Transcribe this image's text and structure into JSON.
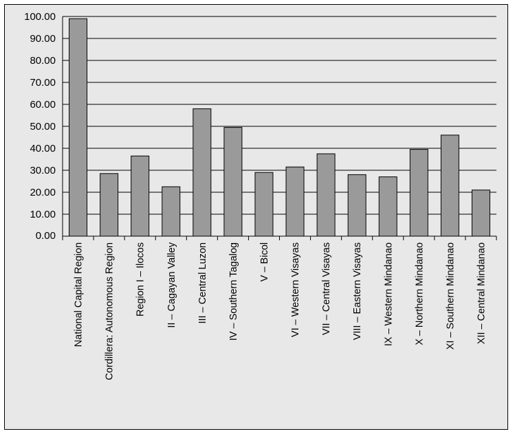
{
  "chart_data": {
    "type": "bar",
    "title": "",
    "xlabel": "",
    "ylabel": "",
    "categories": [
      "National Capital Region",
      "Cordillera: Autonomous Region",
      "Region I – Ilocos",
      "II – Cagayan Valley",
      "III – Central Luzon",
      "IV – Southern Tagalog",
      "V – Bicol",
      "VI – Western Visayas",
      "VII – Central Visayas",
      "VIII – Eastern Visayas",
      "IX – Western Mindanao",
      "X – Northern Mindanao",
      "XI – Southern Mindanao",
      "XII – Central Mindanao"
    ],
    "values": [
      99.0,
      28.5,
      36.5,
      22.5,
      58.0,
      49.5,
      29.0,
      31.5,
      37.5,
      28.0,
      27.0,
      39.5,
      46.0,
      21.0
    ],
    "ylim": [
      0,
      100
    ],
    "yticks": [
      0,
      10,
      20,
      30,
      40,
      50,
      60,
      70,
      80,
      90,
      100
    ],
    "ytick_labels": [
      "0.00",
      "10.00",
      "20.00",
      "30.00",
      "40.00",
      "50.00",
      "60.00",
      "70.00",
      "80.00",
      "90.00",
      "100.00"
    ],
    "grid": true,
    "legend": "none",
    "colors": {
      "bar_fill": "#9a9a9a",
      "bar_stroke": "#000000",
      "background": "#e8e8e8",
      "gridline": "#000000"
    }
  }
}
